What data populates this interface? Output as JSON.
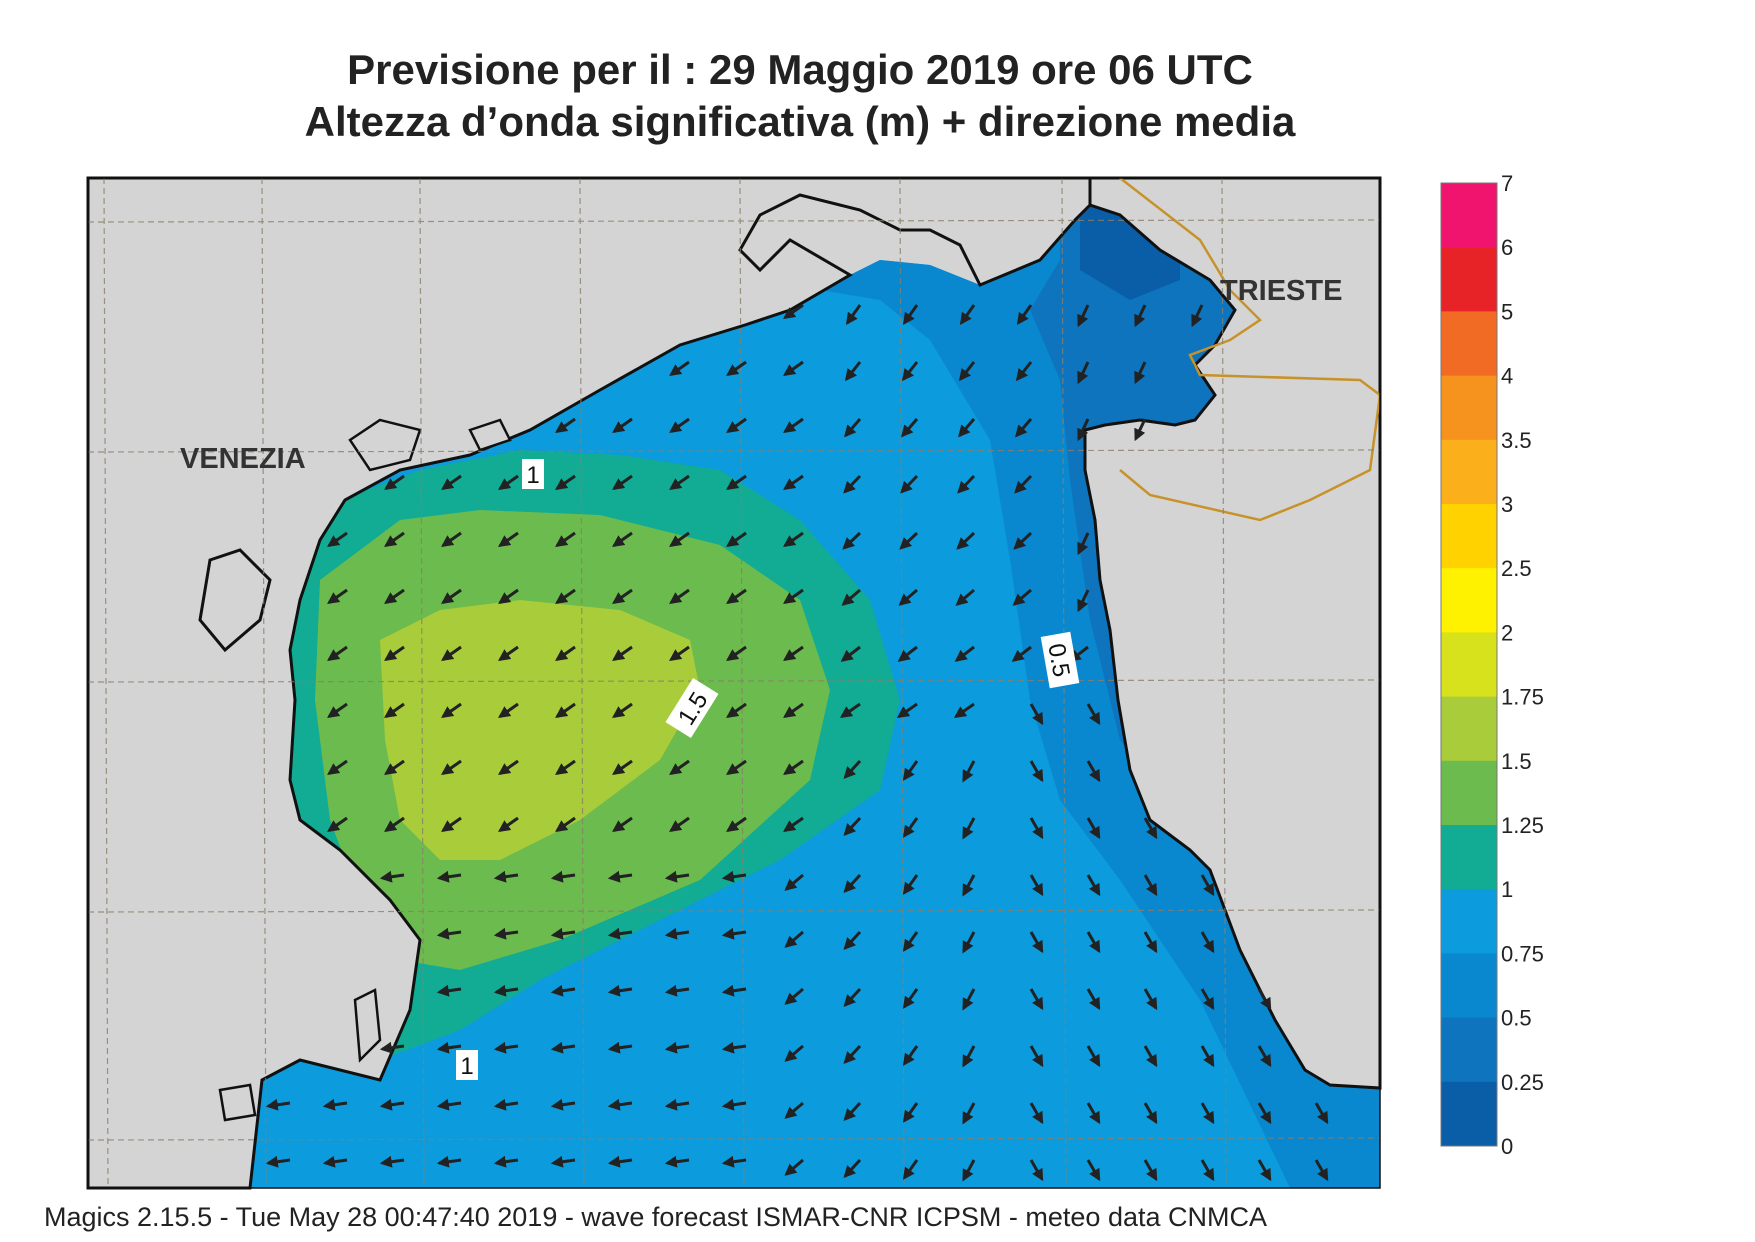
{
  "title_line1": "Previsione per il  :  29   Maggio  2019   ore 06 UTC",
  "title_line2": "Altezza d’onda significativa (m) + direzione media",
  "cities": [
    "VENEZIA",
    "TRIESTE"
  ],
  "contour_labels": [
    "1",
    "1.5",
    "0.5",
    "1"
  ],
  "colorbar": {
    "tick_labels": [
      "7",
      "6",
      "5",
      "4",
      "3.5",
      "3",
      "2.5",
      "2",
      "1.75",
      "1.5",
      "1.25",
      "1",
      "0.75",
      "0.5",
      "0.25",
      "0"
    ],
    "colors": [
      "#f0146e",
      "#e82328",
      "#f26b24",
      "#f6921e",
      "#fbaf1a",
      "#ffd200",
      "#fff200",
      "#d8e21c",
      "#a8cc3a",
      "#6cbb4e",
      "#12ab94",
      "#0c9bdc",
      "#0988cf",
      "#0d74bd",
      "#0a5ea8"
    ]
  },
  "colors": {
    "land": "#d4d4d4",
    "coast": "#111111",
    "arrow": "#222222",
    "border": "#c8922a"
  },
  "footer": "Magics 2.15.5 - Tue May 28 00:47:40 2019 - wave forecast  ISMAR-CNR  ICPSM - meteo data   CNMCA"
}
